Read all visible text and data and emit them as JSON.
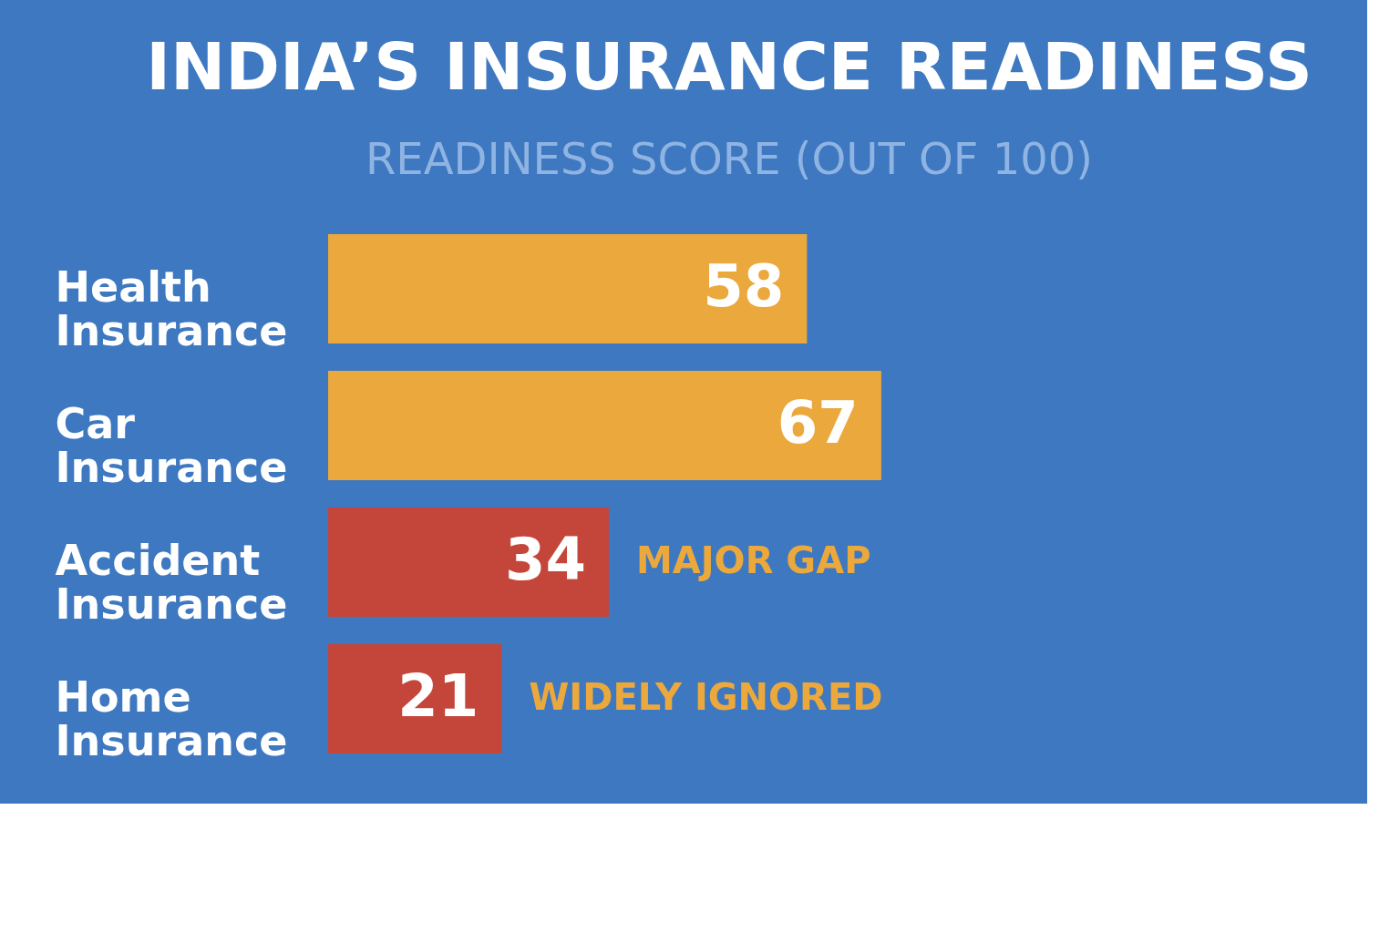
{
  "chart_data": {
    "type": "bar",
    "orientation": "horizontal",
    "title": "INDIA’S INSURANCE READINESS",
    "subtitle": "READINESS SCORE (OUT OF 100)",
    "categories": [
      "Health Insurance",
      "Car Insurance",
      "Accident Insurance",
      "Home Insurance"
    ],
    "values": [
      58,
      67,
      34,
      21
    ],
    "colors": [
      "#eba83c",
      "#eba83c",
      "#c4463a",
      "#c4463a"
    ],
    "data_labels": true,
    "grid": false,
    "legend": false,
    "annotations": [
      {
        "text": "MAJOR GAP",
        "x": 34,
        "y": "Accident Insurance"
      },
      {
        "text": "WIDELY IGNORED",
        "x": 21,
        "y": "Home Insurance"
      }
    ]
  }
}
